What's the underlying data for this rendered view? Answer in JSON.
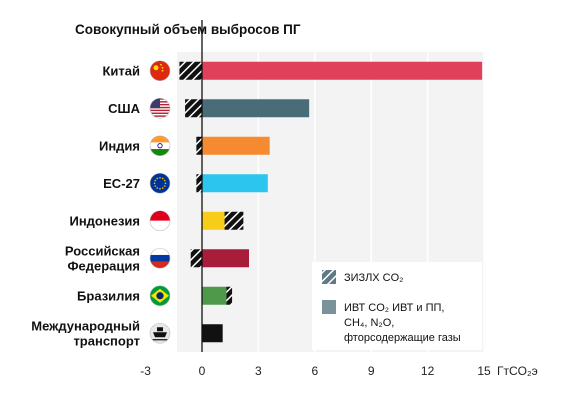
{
  "chart_data": {
    "type": "bar",
    "title": "Совокупный объем выбросов ПГ",
    "xlabel": "ГтCO₂э",
    "xlim": [
      -3,
      15
    ],
    "xticks": [
      -3,
      0,
      3,
      6,
      9,
      12,
      15
    ],
    "grid": true,
    "legend_placement": "bottom-right",
    "categories": [
      {
        "label_lines": [
          "Китай"
        ],
        "flag": "china-flag"
      },
      {
        "label_lines": [
          "США"
        ],
        "flag": "usa-flag"
      },
      {
        "label_lines": [
          "Индия"
        ],
        "flag": "india-flag"
      },
      {
        "label_lines": [
          "ЕС-27"
        ],
        "flag": "eu-flag"
      },
      {
        "label_lines": [
          "Индонезия"
        ],
        "flag": "indonesia-flag"
      },
      {
        "label_lines": [
          "Российская",
          "Федерация"
        ],
        "flag": "russia-flag"
      },
      {
        "label_lines": [
          "Бразилия"
        ],
        "flag": "brazil-flag"
      },
      {
        "label_lines": [
          "Международный",
          "транспорт"
        ],
        "flag": "ship-icon"
      }
    ],
    "colors": [
      "#e0405a",
      "#4a6b78",
      "#f58a30",
      "#2cc5ee",
      "#f7cd1a",
      "#a81d3a",
      "#4e9a4a",
      "#111111"
    ],
    "series": [
      {
        "name": "ЗИЗЛХ CO₂",
        "pattern": "hatched",
        "values": [
          [
            -1.2,
            0
          ],
          [
            -0.9,
            0
          ],
          [
            -0.3,
            0
          ],
          [
            -0.3,
            0
          ],
          [
            1.2,
            2.2
          ],
          [
            -0.6,
            0
          ],
          [
            1.3,
            1.6
          ],
          [
            0,
            0
          ]
        ]
      },
      {
        "name": "ИВТ CO₂ ИВТ и ПП, CH₄, N₂O, фторсодержащие газы",
        "pattern": "solid",
        "values": [
          14.9,
          5.7,
          3.6,
          3.5,
          1.2,
          2.5,
          1.3,
          1.1
        ]
      }
    ]
  },
  "legend": {
    "hatch_label": "ЗИЗЛХ CO₂",
    "solid_label_lines": [
      "ИВТ CO₂ ИВТ и ПП,",
      "CH₄, N₂O,",
      "фторсодержащие газы"
    ]
  }
}
